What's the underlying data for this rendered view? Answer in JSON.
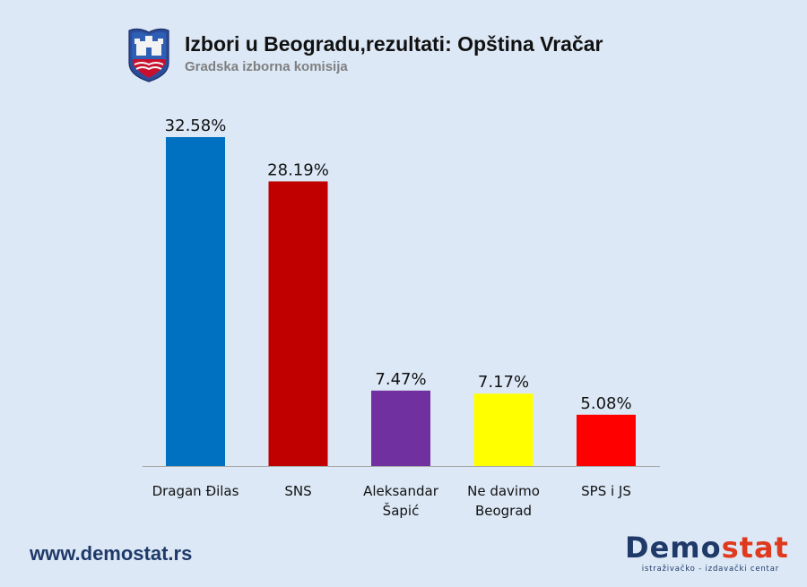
{
  "header": {
    "title": "Izbori u Beogradu,rezultati: Opština Vračar",
    "subtitle": "Gradska izborna komisija",
    "crest_icon": "belgrade-coat-of-arms-icon"
  },
  "chart_data": {
    "type": "bar",
    "categories": [
      [
        "Dragan Đilas"
      ],
      [
        "SNS"
      ],
      [
        "Aleksandar",
        "Šapić"
      ],
      [
        "Ne davimo",
        "Beograd"
      ],
      [
        "SPS i JS"
      ]
    ],
    "values": [
      32.58,
      28.19,
      7.47,
      7.17,
      5.08
    ],
    "value_labels": [
      "32.58%",
      "28.19%",
      "7.47%",
      "7.17%",
      "5.08%"
    ],
    "colors": [
      "#0070c0",
      "#c00000",
      "#7030a0",
      "#ffff00",
      "#ff0000"
    ],
    "ylim": [
      0,
      33.5
    ],
    "grid": false,
    "legend": "none"
  },
  "footer": {
    "website": "www.demostat.rs",
    "logo_main": "Demo",
    "logo_accent": "stat",
    "logo_tagline": "istraživačko - izdavački centar",
    "accent_color": "#e03a1e"
  }
}
